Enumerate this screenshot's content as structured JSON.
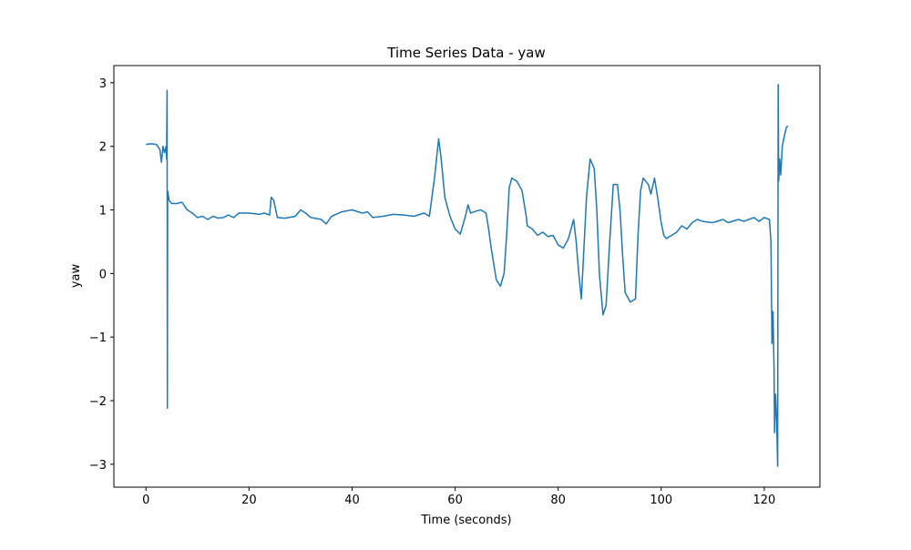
{
  "chart_data": {
    "type": "line",
    "title": "Time Series Data - yaw",
    "xlabel": "Time (seconds)",
    "ylabel": "yaw",
    "x": [
      0,
      1,
      2,
      2.7,
      3,
      3.3,
      3.6,
      3.9,
      4.0,
      4.1,
      4.15,
      4.2,
      4.5,
      5,
      6,
      7,
      8,
      9,
      10,
      11,
      12,
      13,
      14,
      15,
      16,
      17,
      18,
      20,
      22,
      23,
      24,
      24.3,
      24.8,
      25.5,
      27,
      29,
      30,
      31,
      32,
      34,
      35,
      36,
      38,
      40,
      42,
      43,
      44,
      46,
      48,
      50,
      52,
      54,
      55,
      56,
      56.8,
      57.3,
      58,
      59,
      60,
      61,
      62,
      62.5,
      63,
      64,
      65,
      66,
      66.5,
      67,
      68,
      68.8,
      69.5,
      70,
      70.5,
      71,
      72,
      73,
      73.8,
      74,
      75,
      76,
      77,
      78,
      79,
      80,
      81,
      82,
      83,
      83.5,
      84,
      84.5,
      85,
      85.5,
      86.2,
      87,
      87.5,
      88,
      88.7,
      89.3,
      90,
      90.7,
      91.5,
      92,
      92.5,
      93,
      94,
      95,
      95.5,
      96,
      96.5,
      97.5,
      98,
      98.7,
      99.3,
      100,
      100.5,
      101,
      102,
      103,
      104,
      105,
      106,
      107,
      108,
      110,
      112,
      113,
      115,
      116,
      117,
      118,
      119,
      120,
      121,
      121.3,
      121.5,
      121.7,
      121.9,
      122,
      122.2,
      122.4,
      122.6,
      122.7,
      122.8,
      123,
      123.2,
      123.5,
      124,
      124.3,
      124.6
    ],
    "series": [
      {
        "name": "yaw",
        "color": "#1f77b4",
        "values": [
          2.03,
          2.04,
          2.03,
          1.95,
          1.75,
          2.0,
          1.9,
          2.0,
          1.8,
          2.88,
          -2.12,
          1.3,
          1.15,
          1.1,
          1.1,
          1.12,
          1.0,
          0.95,
          0.88,
          0.9,
          0.85,
          0.9,
          0.87,
          0.88,
          0.92,
          0.88,
          0.95,
          0.95,
          0.93,
          0.95,
          0.92,
          1.2,
          1.15,
          0.88,
          0.87,
          0.9,
          1.0,
          0.95,
          0.88,
          0.85,
          0.78,
          0.9,
          0.97,
          1.0,
          0.95,
          0.97,
          0.88,
          0.9,
          0.93,
          0.92,
          0.9,
          0.95,
          0.9,
          1.5,
          2.12,
          1.8,
          1.2,
          0.9,
          0.7,
          0.62,
          0.9,
          1.08,
          0.95,
          0.98,
          1.0,
          0.95,
          0.7,
          0.4,
          -0.1,
          -0.2,
          0.0,
          0.6,
          1.35,
          1.5,
          1.45,
          1.3,
          0.9,
          0.75,
          0.7,
          0.6,
          0.65,
          0.58,
          0.6,
          0.45,
          0.4,
          0.55,
          0.85,
          0.5,
          0.0,
          -0.4,
          0.4,
          1.2,
          1.8,
          1.65,
          1.0,
          0.0,
          -0.65,
          -0.5,
          0.5,
          1.4,
          1.4,
          1.0,
          0.3,
          -0.3,
          -0.45,
          -0.4,
          0.6,
          1.3,
          1.5,
          1.4,
          1.25,
          1.5,
          1.2,
          0.8,
          0.6,
          0.55,
          0.6,
          0.65,
          0.75,
          0.7,
          0.8,
          0.85,
          0.82,
          0.8,
          0.85,
          0.8,
          0.85,
          0.82,
          0.85,
          0.88,
          0.82,
          0.88,
          0.85,
          0.5,
          -1.1,
          -0.6,
          -1.5,
          -2.5,
          -1.9,
          -2.3,
          -3.03,
          2.97,
          1.45,
          1.8,
          1.55,
          2.0,
          2.2,
          2.3,
          2.32
        ]
      }
    ],
    "xlim": [
      -6.23,
      130.8
    ],
    "ylim": [
      -3.36,
      3.27
    ],
    "xticks": [
      0,
      20,
      40,
      60,
      80,
      100,
      120
    ],
    "yticks": [
      {
        "value": -3,
        "label": "−3"
      },
      {
        "value": -2,
        "label": "−2"
      },
      {
        "value": -1,
        "label": "−1"
      },
      0,
      1,
      2,
      3
    ]
  }
}
